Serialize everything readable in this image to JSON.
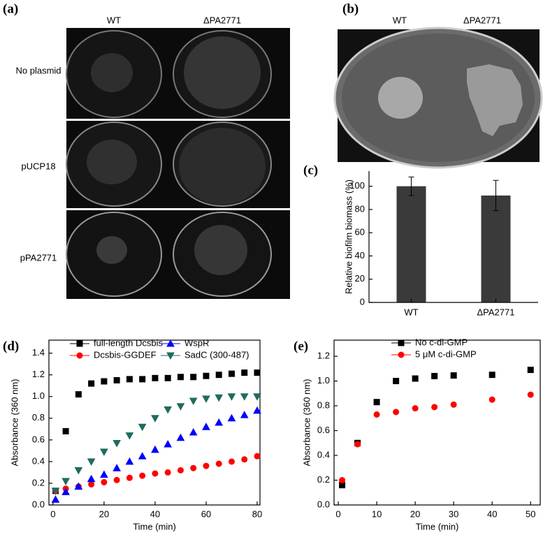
{
  "panels": {
    "a": {
      "label": "(a)",
      "columns": [
        "WT",
        "ΔPA2771"
      ],
      "rows": [
        "No plasmid",
        "pUCP18",
        "pPA2771"
      ]
    },
    "b": {
      "label": "(b)",
      "columns": [
        "WT",
        "ΔPA2771"
      ]
    }
  },
  "chart_data": [
    {
      "type": "bar",
      "panel_label": "(c)",
      "y_label": "Relative biofilm biomass (%)",
      "categories": [
        "WT",
        "ΔPA2771"
      ],
      "values": [
        100,
        92
      ],
      "errors": [
        8,
        13
      ],
      "color": "#3a3a3a",
      "ylim": [
        0,
        113
      ],
      "yticks": [
        0,
        20,
        40,
        60,
        80,
        100
      ]
    },
    {
      "type": "line",
      "panel_label": "(d)",
      "x_label": "Time (min)",
      "y_label": "Absorbance (360 nm)",
      "x": [
        1,
        5,
        10,
        15,
        20,
        25,
        30,
        35,
        40,
        45,
        50,
        55,
        60,
        65,
        70,
        75,
        80
      ],
      "series": [
        {
          "name": "full-length Dcsbis",
          "color": "#000000",
          "marker": "square",
          "values": [
            0.13,
            0.68,
            1.02,
            1.12,
            1.14,
            1.15,
            1.16,
            1.16,
            1.17,
            1.17,
            1.18,
            1.18,
            1.19,
            1.2,
            1.21,
            1.22,
            1.22
          ]
        },
        {
          "name": "Dcsbis-GGDEF",
          "color": "#ff0000",
          "marker": "circle",
          "values": [
            0.13,
            0.15,
            0.17,
            0.19,
            0.21,
            0.23,
            0.25,
            0.27,
            0.29,
            0.3,
            0.32,
            0.34,
            0.36,
            0.38,
            0.4,
            0.42,
            0.45
          ]
        },
        {
          "name": "WspR",
          "color": "#0000ff",
          "marker": "triangle-up",
          "values": [
            0.05,
            0.12,
            0.17,
            0.24,
            0.28,
            0.34,
            0.4,
            0.45,
            0.51,
            0.56,
            0.62,
            0.67,
            0.72,
            0.76,
            0.8,
            0.83,
            0.87
          ]
        },
        {
          "name": "SadC (300-487)",
          "color": "#1f6b5e",
          "marker": "triangle-down",
          "values": [
            0.13,
            0.22,
            0.32,
            0.4,
            0.49,
            0.57,
            0.64,
            0.72,
            0.8,
            0.88,
            0.91,
            0.96,
            0.98,
            0.99,
            1.0,
            1.0,
            1.0
          ]
        }
      ],
      "xlim": [
        -1.6,
        81.1
      ],
      "xticks": [
        0,
        20,
        40,
        60,
        80
      ],
      "ylim": [
        0,
        1.52
      ],
      "yticks": [
        {
          "value": 0,
          "label": "0.0"
        },
        0.2,
        0.4,
        0.6,
        0.8,
        {
          "value": 1,
          "label": "1.0"
        },
        1.2,
        1.4
      ],
      "legend": "upper left"
    },
    {
      "type": "line",
      "panel_label": "(e)",
      "x_label": "Time (min)",
      "y_label": "Absorbance (360 nm)",
      "x": [
        1,
        5,
        10,
        15,
        20,
        25,
        30,
        40,
        50
      ],
      "series": [
        {
          "name": "No c-di-GMP",
          "color": "#000000",
          "marker": "square",
          "values": [
            0.16,
            0.5,
            0.83,
            1.0,
            1.02,
            1.04,
            1.045,
            1.05,
            1.09
          ]
        },
        {
          "name": "5 μM c-di-GMP",
          "color": "#ff0000",
          "marker": "circle",
          "values": [
            0.2,
            0.49,
            0.73,
            0.75,
            0.78,
            0.79,
            0.81,
            0.85,
            0.89
          ]
        }
      ],
      "xlim": [
        -1.1,
        52.5
      ],
      "xticks": [
        0,
        10,
        20,
        30,
        40,
        50
      ],
      "ylim": [
        0,
        1.33
      ],
      "yticks": [
        {
          "value": 0,
          "label": "0.0"
        },
        0.2,
        0.4,
        0.6,
        0.8,
        {
          "value": 1,
          "label": "1.0"
        },
        1.2
      ],
      "legend": "upper left"
    }
  ]
}
